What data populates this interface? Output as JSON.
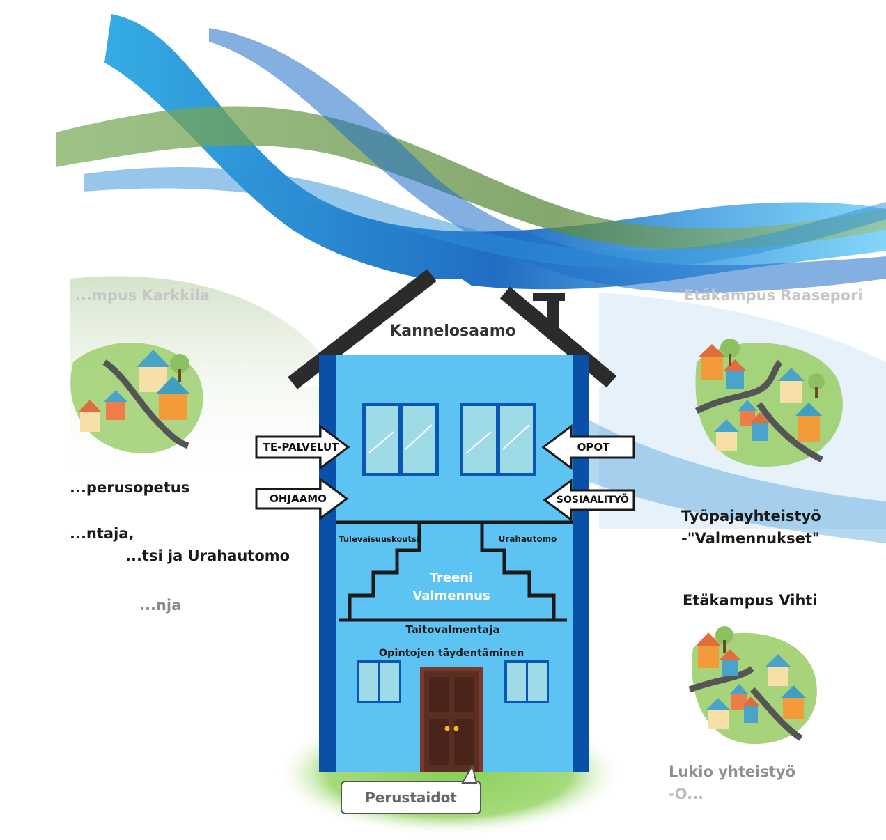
{
  "house": {
    "title": "Kannelosaamo",
    "stairs_left": "Tulevaisuuskoutsi",
    "stairs_right": "Urahautomo",
    "center_line1": "Treeni",
    "center_line2": "Valmennus",
    "floor_label": "Taitovalmentaja",
    "lower_label": "Opintojen täydentäminen",
    "sign": "Perustaidot"
  },
  "arrows": {
    "left_top": "TE-PALVELUT",
    "left_bottom": "OHJAAMO",
    "right_top": "OPOT",
    "right_bottom": "SOSIAALITYÖ"
  },
  "left_campus": {
    "title": "...mpus Karkkila",
    "line1": "...perusopetus",
    "line2": "...ntaja,",
    "line3": "...tsi ja Urahautomo",
    "line4": "...nja"
  },
  "right_campus": {
    "title": "Etäkampus Raasepori",
    "coop1_line1": "Työpajayhteistyö",
    "coop1_line2": "-\"Valmennukset\"",
    "vihti": "Etäkampus Vihti",
    "lukio_line1": "Lukio yhteistyö",
    "lukio_line2": "-O..."
  },
  "colors": {
    "house_blue": "#5cc3f2",
    "house_frame": "#0a4fa8",
    "wave_blue": "#1e88d8",
    "wave_green": "#7aa35a",
    "grass": "#8fcf5c",
    "door": "#5a2e22"
  }
}
